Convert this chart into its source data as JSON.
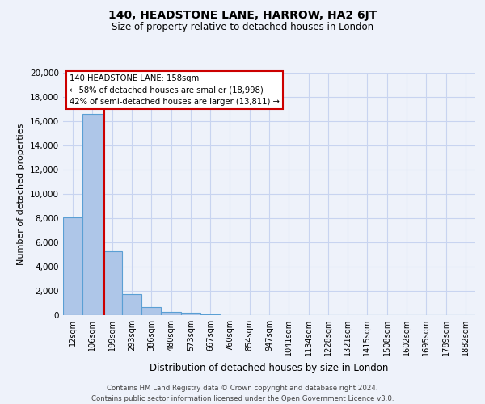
{
  "title": "140, HEADSTONE LANE, HARROW, HA2 6JT",
  "subtitle": "Size of property relative to detached houses in London",
  "xlabel": "Distribution of detached houses by size in London",
  "ylabel": "Number of detached properties",
  "bar_labels": [
    "12sqm",
    "106sqm",
    "199sqm",
    "293sqm",
    "386sqm",
    "480sqm",
    "573sqm",
    "667sqm",
    "760sqm",
    "854sqm",
    "947sqm",
    "1041sqm",
    "1134sqm",
    "1228sqm",
    "1321sqm",
    "1415sqm",
    "1508sqm",
    "1602sqm",
    "1695sqm",
    "1789sqm",
    "1882sqm"
  ],
  "bar_values": [
    8100,
    16600,
    5300,
    1750,
    700,
    300,
    200,
    100,
    0,
    0,
    0,
    0,
    0,
    0,
    0,
    0,
    0,
    0,
    0,
    0,
    0
  ],
  "bar_color": "#aec6e8",
  "bar_edge_color": "#5a9fd4",
  "background_color": "#eef2fa",
  "grid_color": "#c8d4f0",
  "vline_x": 1.58,
  "vline_color": "#cc0000",
  "annotation_title": "140 HEADSTONE LANE: 158sqm",
  "annotation_line1": "← 58% of detached houses are smaller (18,998)",
  "annotation_line2": "42% of semi-detached houses are larger (13,811) →",
  "annotation_box_color": "#ffffff",
  "annotation_box_edge": "#cc0000",
  "ylim": [
    0,
    20000
  ],
  "yticks": [
    0,
    2000,
    4000,
    6000,
    8000,
    10000,
    12000,
    14000,
    16000,
    18000,
    20000
  ],
  "footer_line1": "Contains HM Land Registry data © Crown copyright and database right 2024.",
  "footer_line2": "Contains public sector information licensed under the Open Government Licence v3.0."
}
